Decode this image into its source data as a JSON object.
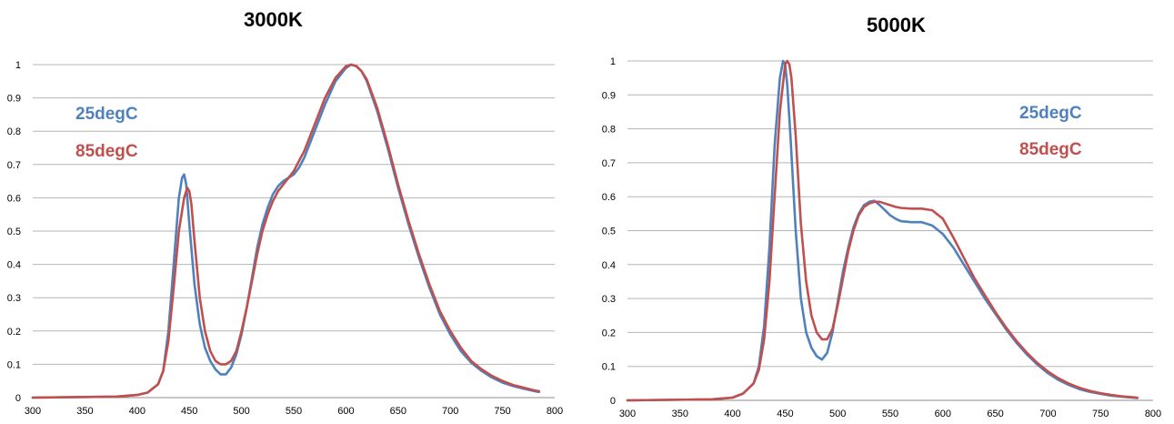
{
  "chart_data": [
    {
      "type": "line",
      "title": "3000K",
      "xlabel": "",
      "ylabel": "",
      "xlim": [
        300,
        800
      ],
      "ylim": [
        0,
        1
      ],
      "x_ticks": [
        300,
        350,
        400,
        450,
        500,
        550,
        600,
        650,
        700,
        750,
        800
      ],
      "y_ticks": [
        0,
        0.1,
        0.2,
        0.3,
        0.4,
        0.5,
        0.6,
        0.7,
        0.8,
        0.9,
        1
      ],
      "grid": "horizontal",
      "legend_position": "top-left",
      "series": [
        {
          "name": "25degC",
          "color": "#4f81bd",
          "x": [
            300,
            380,
            400,
            410,
            420,
            425,
            430,
            435,
            440,
            443,
            445,
            447,
            450,
            455,
            460,
            465,
            470,
            475,
            480,
            485,
            490,
            495,
            500,
            505,
            510,
            515,
            520,
            525,
            530,
            535,
            540,
            545,
            550,
            555,
            560,
            570,
            580,
            590,
            600,
            605,
            610,
            615,
            620,
            630,
            640,
            650,
            660,
            670,
            680,
            690,
            700,
            710,
            720,
            730,
            740,
            750,
            760,
            770,
            780,
            785
          ],
          "y": [
            0,
            0.003,
            0.008,
            0.015,
            0.04,
            0.08,
            0.2,
            0.4,
            0.6,
            0.66,
            0.67,
            0.64,
            0.52,
            0.34,
            0.22,
            0.15,
            0.11,
            0.085,
            0.07,
            0.07,
            0.09,
            0.13,
            0.19,
            0.27,
            0.36,
            0.45,
            0.52,
            0.57,
            0.61,
            0.635,
            0.65,
            0.66,
            0.67,
            0.69,
            0.72,
            0.8,
            0.88,
            0.95,
            0.99,
            1.0,
            0.995,
            0.98,
            0.95,
            0.86,
            0.75,
            0.63,
            0.52,
            0.42,
            0.33,
            0.25,
            0.19,
            0.14,
            0.105,
            0.08,
            0.06,
            0.045,
            0.035,
            0.027,
            0.02,
            0.017
          ]
        },
        {
          "name": "85degC",
          "color": "#c0504d",
          "x": [
            300,
            380,
            400,
            410,
            420,
            425,
            430,
            435,
            440,
            445,
            448,
            450,
            452,
            455,
            460,
            465,
            470,
            475,
            480,
            485,
            490,
            495,
            500,
            505,
            510,
            515,
            520,
            525,
            530,
            535,
            540,
            545,
            550,
            555,
            560,
            570,
            580,
            590,
            600,
            605,
            610,
            615,
            620,
            630,
            640,
            650,
            660,
            670,
            680,
            690,
            700,
            710,
            720,
            730,
            740,
            750,
            760,
            770,
            780,
            785
          ],
          "y": [
            0,
            0.003,
            0.008,
            0.015,
            0.04,
            0.08,
            0.17,
            0.33,
            0.5,
            0.6,
            0.63,
            0.62,
            0.58,
            0.47,
            0.3,
            0.2,
            0.14,
            0.11,
            0.1,
            0.1,
            0.11,
            0.14,
            0.2,
            0.27,
            0.35,
            0.43,
            0.5,
            0.55,
            0.59,
            0.62,
            0.64,
            0.66,
            0.68,
            0.71,
            0.74,
            0.82,
            0.9,
            0.96,
            0.995,
            1.0,
            0.995,
            0.98,
            0.955,
            0.87,
            0.76,
            0.64,
            0.53,
            0.43,
            0.34,
            0.26,
            0.2,
            0.15,
            0.11,
            0.085,
            0.065,
            0.05,
            0.038,
            0.03,
            0.022,
            0.019
          ]
        }
      ]
    },
    {
      "type": "line",
      "title": "5000K",
      "xlabel": "",
      "ylabel": "",
      "xlim": [
        300,
        800
      ],
      "ylim": [
        0,
        1
      ],
      "x_ticks": [
        300,
        350,
        400,
        450,
        500,
        550,
        600,
        650,
        700,
        750,
        800
      ],
      "y_ticks": [
        0,
        0.1,
        0.2,
        0.3,
        0.4,
        0.5,
        0.6,
        0.7,
        0.8,
        0.9,
        1
      ],
      "grid": "horizontal",
      "legend_position": "top-right",
      "series": [
        {
          "name": "25degC",
          "color": "#4f81bd",
          "x": [
            300,
            380,
            400,
            410,
            420,
            425,
            430,
            435,
            440,
            445,
            448,
            450,
            452,
            455,
            460,
            465,
            470,
            475,
            480,
            485,
            490,
            495,
            500,
            505,
            510,
            515,
            520,
            525,
            530,
            535,
            540,
            545,
            550,
            555,
            560,
            570,
            580,
            590,
            600,
            610,
            620,
            630,
            640,
            650,
            660,
            670,
            680,
            690,
            700,
            710,
            720,
            730,
            740,
            750,
            760,
            770,
            780,
            785
          ],
          "y": [
            0,
            0.003,
            0.008,
            0.02,
            0.05,
            0.1,
            0.22,
            0.45,
            0.75,
            0.95,
            1.0,
            0.99,
            0.93,
            0.78,
            0.5,
            0.3,
            0.2,
            0.155,
            0.13,
            0.12,
            0.14,
            0.2,
            0.29,
            0.38,
            0.45,
            0.51,
            0.55,
            0.575,
            0.585,
            0.588,
            0.575,
            0.56,
            0.545,
            0.535,
            0.528,
            0.525,
            0.525,
            0.515,
            0.49,
            0.45,
            0.4,
            0.35,
            0.3,
            0.255,
            0.21,
            0.17,
            0.135,
            0.105,
            0.08,
            0.06,
            0.045,
            0.033,
            0.025,
            0.019,
            0.014,
            0.011,
            0.008,
            0.007
          ]
        },
        {
          "name": "85degC",
          "color": "#c0504d",
          "x": [
            300,
            380,
            400,
            410,
            420,
            425,
            430,
            435,
            440,
            445,
            450,
            452,
            454,
            456,
            460,
            465,
            470,
            475,
            480,
            485,
            490,
            495,
            500,
            505,
            510,
            515,
            520,
            525,
            530,
            535,
            540,
            545,
            550,
            555,
            560,
            570,
            580,
            590,
            600,
            610,
            620,
            630,
            640,
            650,
            660,
            670,
            680,
            690,
            700,
            710,
            720,
            730,
            740,
            750,
            760,
            770,
            780,
            785
          ],
          "y": [
            0,
            0.003,
            0.008,
            0.02,
            0.05,
            0.09,
            0.18,
            0.35,
            0.6,
            0.85,
            0.99,
            1.0,
            0.99,
            0.95,
            0.78,
            0.52,
            0.35,
            0.25,
            0.2,
            0.18,
            0.18,
            0.21,
            0.28,
            0.36,
            0.44,
            0.5,
            0.545,
            0.57,
            0.58,
            0.585,
            0.585,
            0.58,
            0.575,
            0.57,
            0.567,
            0.565,
            0.565,
            0.56,
            0.535,
            0.48,
            0.42,
            0.36,
            0.31,
            0.26,
            0.215,
            0.175,
            0.14,
            0.11,
            0.085,
            0.065,
            0.049,
            0.037,
            0.028,
            0.021,
            0.016,
            0.012,
            0.009,
            0.008
          ]
        }
      ]
    }
  ]
}
